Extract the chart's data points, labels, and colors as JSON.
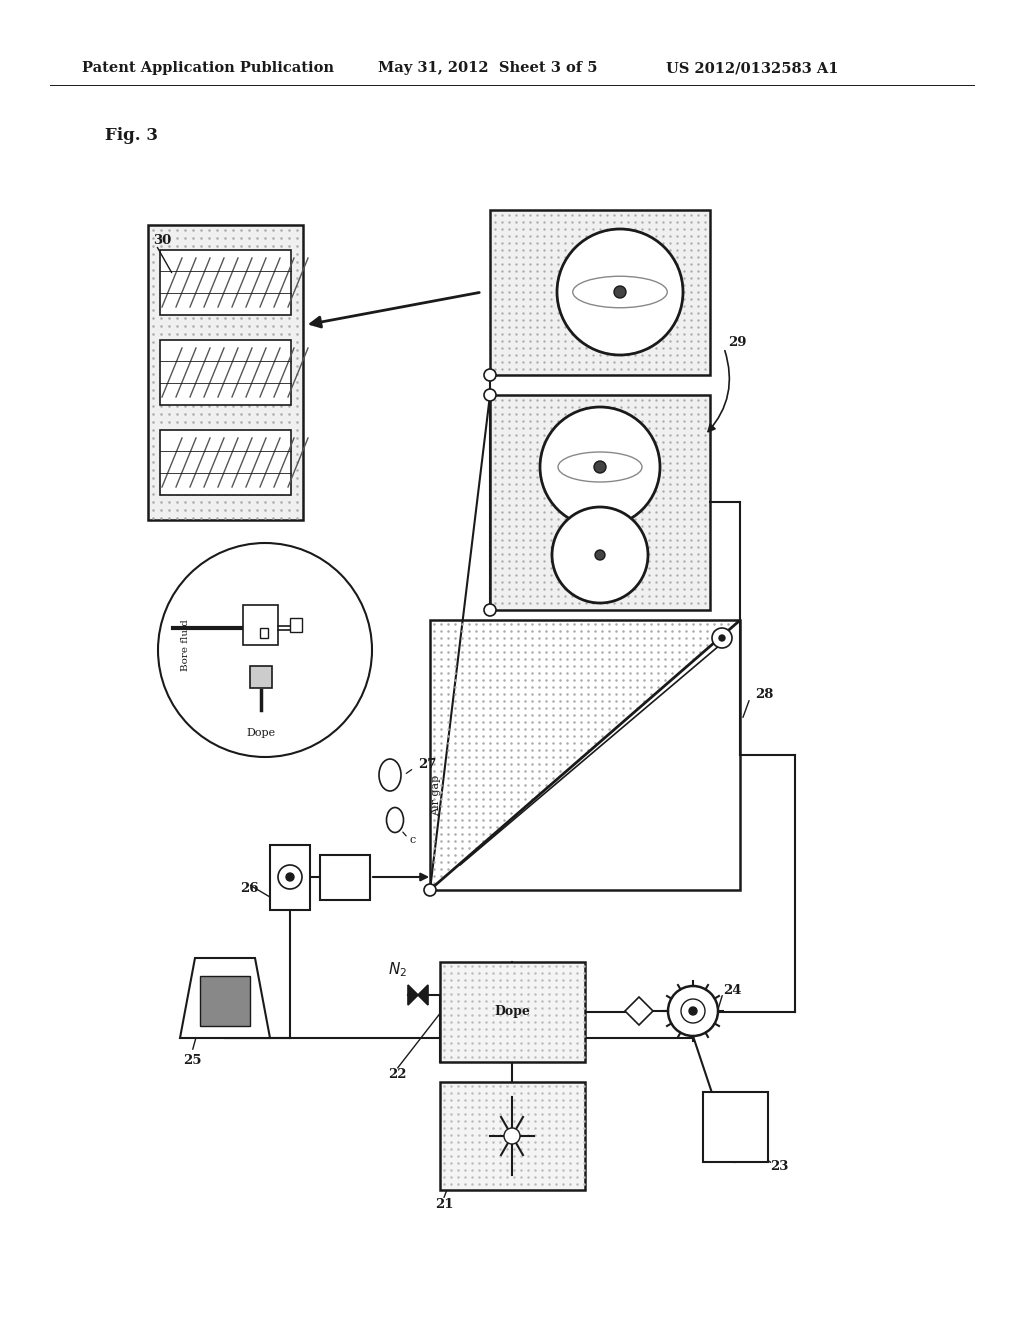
{
  "bg_color": "#ffffff",
  "line_color": "#1a1a1a",
  "gray_color": "#999999",
  "header_left": "Patent Application Publication",
  "header_mid": "May 31, 2012  Sheet 3 of 5",
  "header_right": "US 2012/0132583 A1",
  "fig_label": "Fig. 3"
}
